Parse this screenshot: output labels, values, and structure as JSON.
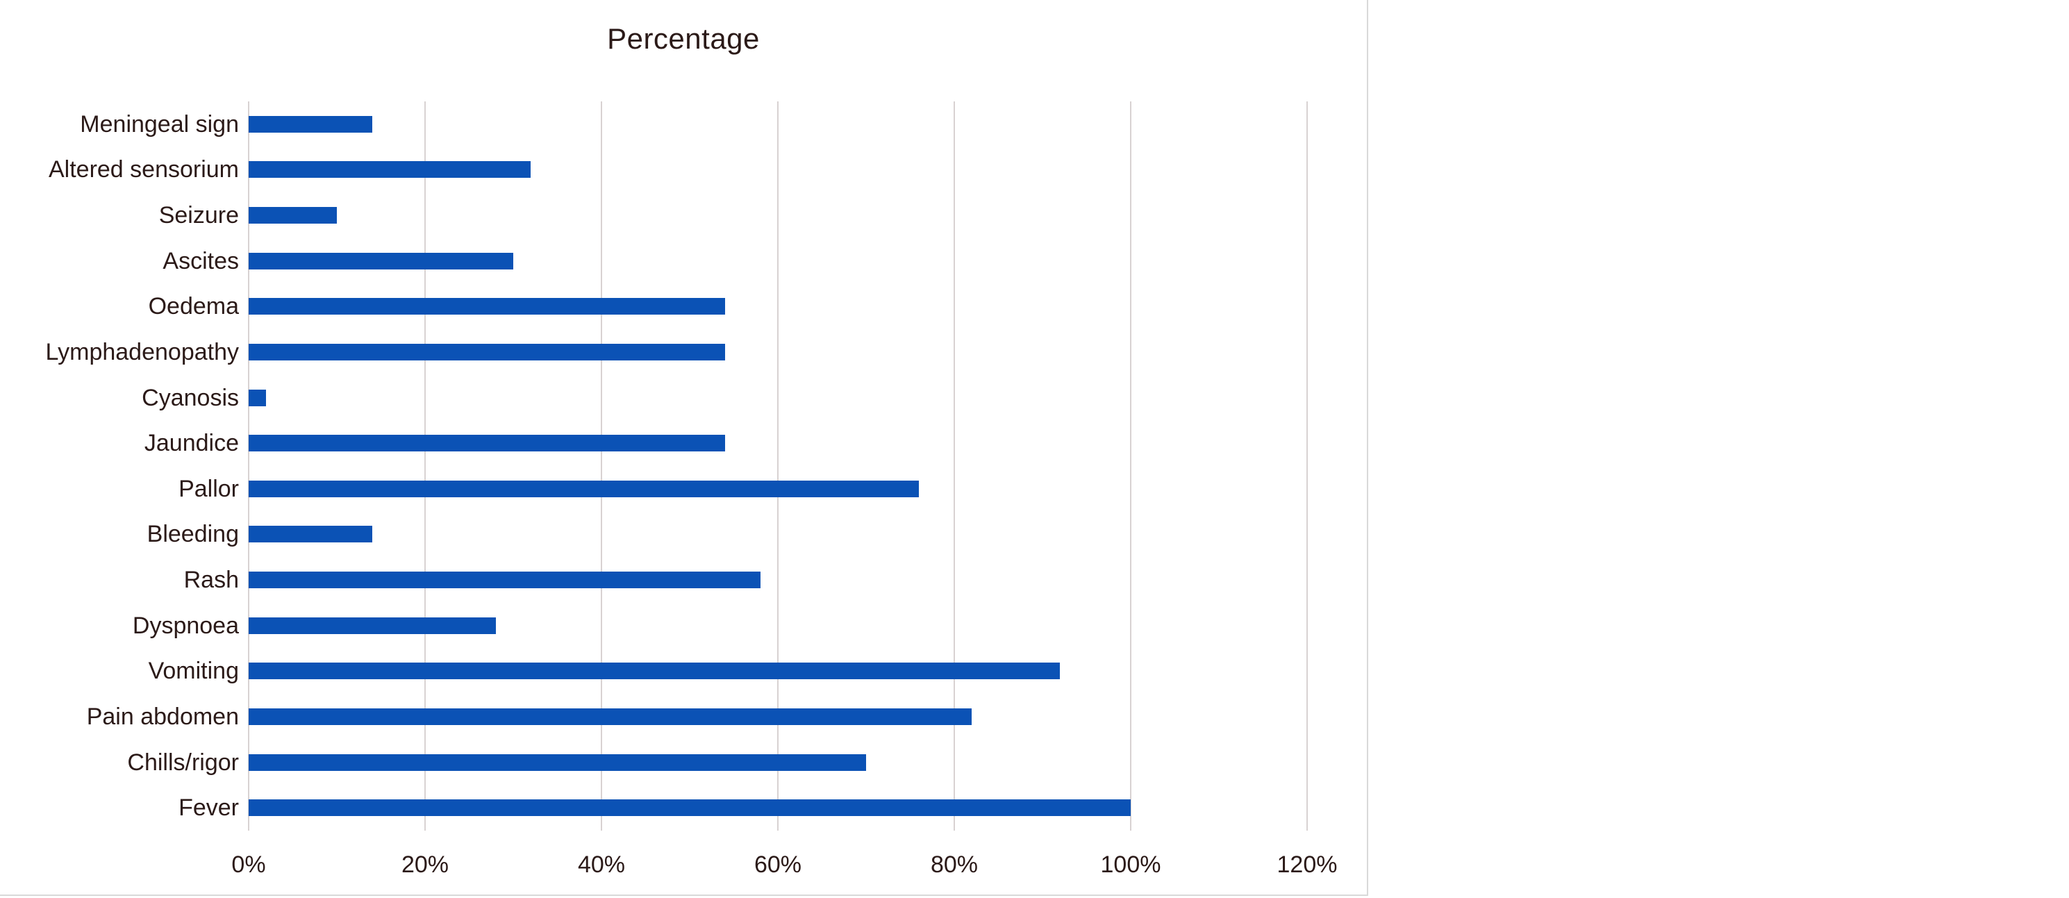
{
  "window": {
    "background": "#ffffff"
  },
  "chart_data": {
    "type": "bar",
    "orientation": "horizontal",
    "title": "Percentage",
    "categories": [
      "Meningeal sign",
      "Altered sensorium",
      "Seizure",
      "Ascites",
      "Oedema",
      "Lymphadenopathy",
      "Cyanosis",
      "Jaundice",
      "Pallor",
      "Bleeding",
      "Rash",
      "Dyspnoea",
      "Vomiting",
      "Pain abdomen",
      "Chills/rigor",
      "Fever"
    ],
    "values": [
      14,
      32,
      10,
      30,
      54,
      54,
      2,
      54,
      76,
      14,
      58,
      28,
      92,
      82,
      70,
      100
    ],
    "unit": "%",
    "xlabel": "",
    "ylabel": "",
    "xlim": [
      0,
      120
    ],
    "x_ticks": [
      "0%",
      "20%",
      "40%",
      "60%",
      "80%",
      "100%",
      "120%"
    ],
    "x_tick_values": [
      0,
      20,
      40,
      60,
      80,
      100,
      120
    ],
    "grid": true,
    "legend": false,
    "colors": {
      "bar": "#0b52b5",
      "text": "#2b1a18",
      "gridline": "#d8d2d2",
      "chart_border": "#d9d9d9",
      "background": "#ffffff"
    }
  }
}
